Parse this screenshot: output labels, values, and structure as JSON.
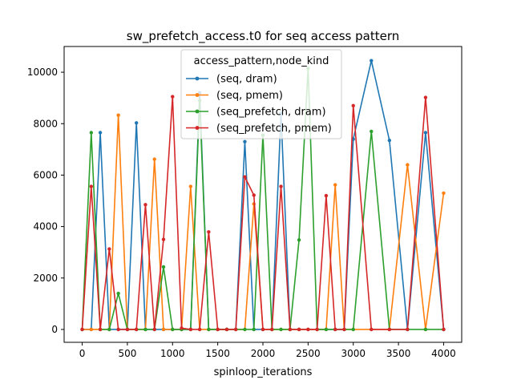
{
  "chart_data": {
    "type": "line",
    "title": "sw_prefetch_access.t0 for seq access pattern",
    "xlabel": "spinloop_iterations",
    "ylabel": "",
    "xlim": [
      -200,
      4200
    ],
    "ylim": [
      -500,
      11000
    ],
    "xticks": [
      0,
      500,
      1000,
      1500,
      2000,
      2500,
      3000,
      3500,
      4000
    ],
    "yticks": [
      0,
      2000,
      4000,
      6000,
      8000,
      10000
    ],
    "grid": false,
    "legend": {
      "title": "access_pattern,node_kind",
      "placement": "upper center"
    },
    "series": [
      {
        "name": "(seq, dram)",
        "color": "#1f77b4",
        "x": [
          0,
          100,
          200,
          300,
          400,
          500,
          600,
          700,
          800,
          900,
          1000,
          1100,
          1200,
          1300,
          1400,
          1500,
          1600,
          1700,
          1800,
          1900,
          2000,
          2100,
          2200,
          2300,
          2400,
          2500,
          2600,
          2700,
          2800,
          2900,
          3000,
          3200,
          3400,
          3600,
          3800,
          4000
        ],
        "y": [
          0,
          0,
          7650,
          0,
          0,
          0,
          8030,
          0,
          0,
          0,
          0,
          0,
          0,
          9200,
          0,
          0,
          0,
          0,
          7300,
          0,
          0,
          0,
          8400,
          0,
          0,
          0,
          0,
          0,
          0,
          0,
          7400,
          10450,
          7350,
          0,
          7650,
          0
        ]
      },
      {
        "name": "(seq, pmem)",
        "color": "#ff7f0e",
        "x": [
          0,
          100,
          200,
          300,
          400,
          500,
          600,
          700,
          800,
          900,
          1000,
          1100,
          1200,
          1300,
          1400,
          1500,
          1600,
          1700,
          1800,
          1900,
          2000,
          2100,
          2200,
          2300,
          2400,
          2500,
          2600,
          2700,
          2800,
          2900,
          3000,
          3200,
          3400,
          3600,
          3800,
          4000
        ],
        "y": [
          0,
          0,
          0,
          0,
          8330,
          0,
          0,
          0,
          6620,
          0,
          0,
          0,
          5560,
          0,
          0,
          0,
          0,
          0,
          0,
          4880,
          0,
          0,
          0,
          0,
          0,
          0,
          0,
          0,
          5620,
          0,
          0,
          0,
          0,
          6400,
          0,
          5300
        ]
      },
      {
        "name": "(seq_prefetch, dram)",
        "color": "#2ca02c",
        "x": [
          0,
          100,
          200,
          300,
          400,
          500,
          600,
          700,
          800,
          900,
          1000,
          1100,
          1200,
          1300,
          1400,
          1500,
          1600,
          1700,
          1800,
          1900,
          2000,
          2100,
          2200,
          2300,
          2400,
          2500,
          2600,
          2700,
          2800,
          2900,
          3000,
          3200,
          3400,
          3600,
          3800,
          4000
        ],
        "y": [
          0,
          7650,
          0,
          0,
          1400,
          0,
          0,
          0,
          0,
          2430,
          0,
          0,
          0,
          8900,
          0,
          0,
          0,
          0,
          0,
          0,
          7550,
          0,
          0,
          0,
          3480,
          10150,
          0,
          0,
          0,
          0,
          0,
          7700,
          0,
          0,
          0,
          0
        ]
      },
      {
        "name": "(seq_prefetch, pmem)",
        "color": "#d62728",
        "x": [
          0,
          100,
          200,
          300,
          400,
          500,
          600,
          700,
          800,
          900,
          1000,
          1100,
          1200,
          1300,
          1400,
          1500,
          1600,
          1700,
          1800,
          1900,
          2000,
          2100,
          2200,
          2300,
          2400,
          2500,
          2600,
          2700,
          2800,
          2900,
          3000,
          3200,
          3400,
          3600,
          3800,
          4000
        ],
        "y": [
          0,
          5560,
          0,
          3130,
          0,
          0,
          0,
          4850,
          0,
          3500,
          9050,
          50,
          0,
          0,
          3790,
          0,
          0,
          0,
          5930,
          5220,
          0,
          0,
          5560,
          0,
          0,
          0,
          0,
          5200,
          0,
          0,
          8700,
          0,
          0,
          0,
          9020,
          0
        ]
      }
    ]
  }
}
